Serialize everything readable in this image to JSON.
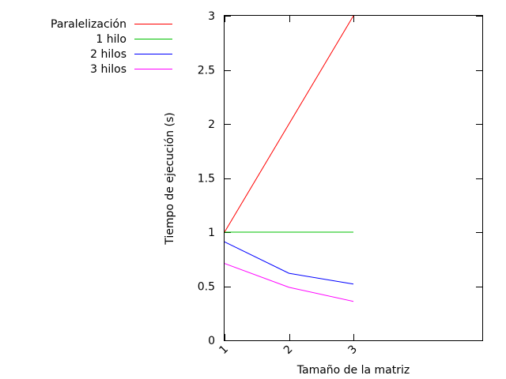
{
  "chart_data": {
    "type": "line",
    "title": "",
    "xlabel": "Tamaño de la matriz",
    "ylabel": "Tiempo de ejecución (s)",
    "x": [
      1,
      2,
      3
    ],
    "x_tick_labels": [
      "1",
      "2",
      "3"
    ],
    "xlim": [
      1,
      5
    ],
    "ylim": [
      0,
      3
    ],
    "y_ticks": [
      0,
      0.5,
      1,
      1.5,
      2,
      2.5,
      3
    ],
    "y_tick_labels": [
      "0",
      "0.5",
      "1",
      "1.5",
      "2",
      "2.5",
      "3"
    ],
    "grid": false,
    "legend_position": "outside top-left",
    "series": [
      {
        "name": "Paralelización",
        "color": "#ff0000",
        "values": [
          1.0,
          2.0,
          3.0
        ]
      },
      {
        "name": "1 hilo",
        "color": "#00c000",
        "values": [
          1.0,
          1.0,
          1.0
        ]
      },
      {
        "name": "2 hilos",
        "color": "#0000ff",
        "values": [
          0.91,
          0.62,
          0.52
        ]
      },
      {
        "name": "3 hilos",
        "color": "#ff00ff",
        "values": [
          0.71,
          0.49,
          0.36
        ]
      }
    ]
  }
}
